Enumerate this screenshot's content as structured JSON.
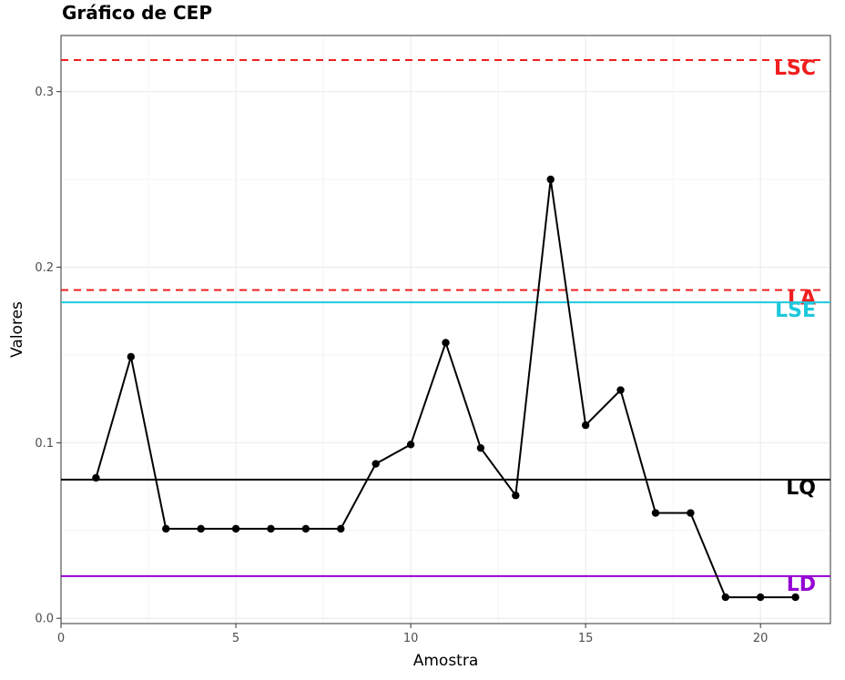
{
  "chart_data": {
    "type": "line",
    "title": "Gráfico de CEP",
    "xlabel": "Amostra",
    "ylabel": "Valores",
    "xlim": [
      0,
      22
    ],
    "ylim": [
      -0.003,
      0.332
    ],
    "x_ticks": [
      0,
      5,
      10,
      15,
      20
    ],
    "y_ticks": [
      0.0,
      0.1,
      0.2,
      0.3
    ],
    "y_tick_labels": [
      "0.0",
      "0.1",
      "0.2",
      "0.3"
    ],
    "grid": true,
    "series": [
      {
        "color": "#000000",
        "x": [
          1,
          2,
          3,
          4,
          5,
          6,
          7,
          8,
          9,
          10,
          11,
          12,
          13,
          14,
          15,
          16,
          17,
          18,
          19,
          20,
          21
        ],
        "y": [
          0.08,
          0.149,
          0.051,
          0.051,
          0.051,
          0.051,
          0.051,
          0.051,
          0.088,
          0.099,
          0.157,
          0.097,
          0.07,
          0.25,
          0.11,
          0.13,
          0.06,
          0.06,
          0.012,
          0.012,
          0.012
        ]
      }
    ],
    "reference_lines": [
      {
        "label": "LSC",
        "y": 0.318,
        "color": "#f01e1e",
        "dashed": true
      },
      {
        "label": "LA",
        "y": 0.187,
        "color": "#f01e1e",
        "dashed": true
      },
      {
        "label": "LSE",
        "y": 0.18,
        "color": "#1ec8dc",
        "dashed": false
      },
      {
        "label": "LQ",
        "y": 0.079,
        "color": "#000000",
        "dashed": false
      },
      {
        "label": "LD",
        "y": 0.024,
        "color": "#9400d3",
        "dashed": false
      }
    ]
  }
}
